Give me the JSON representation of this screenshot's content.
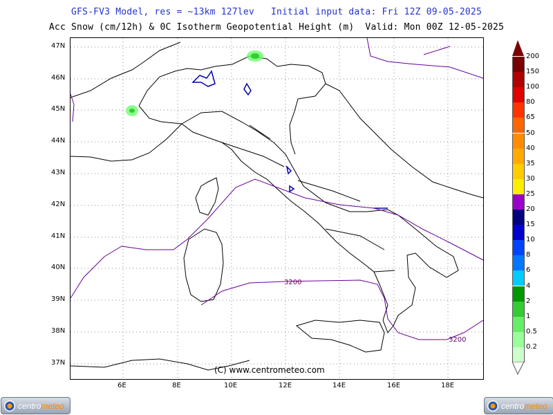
{
  "header": {
    "title_line1": "GFS-FV3 Model, res = ~13km 127lev   Initial input data: Fri 12Z 09-05-2025",
    "title_line2": "Acc Snow (cm/12h) & 0C Isotherm Geopotential Height (m)  Valid: Mon 00Z 12-05-2025"
  },
  "axes": {
    "lat_labels": [
      "47N",
      "46N",
      "45N",
      "44N",
      "43N",
      "42N",
      "41N",
      "40N",
      "39N",
      "38N",
      "37N"
    ],
    "lon_labels": [
      "6E",
      "8E",
      "10E",
      "12E",
      "14E",
      "16E",
      "18E"
    ]
  },
  "map": {
    "credit": "(C) www.centrometeo.com",
    "isotherm_labels": [
      "3200",
      "3200"
    ],
    "colors": {
      "coast": "#000000",
      "isotherm": "#660099",
      "snow_light": "#66ff66",
      "snow_med": "#33cc33"
    }
  },
  "legend": {
    "values": [
      "200",
      "150",
      "100",
      "80",
      "65",
      "50",
      "40",
      "35",
      "30",
      "25",
      "20",
      "15",
      "10",
      "8",
      "6",
      "4",
      "2",
      "1",
      "0.5",
      "0.2"
    ],
    "colors": [
      "#7a0000",
      "#b00000",
      "#e00000",
      "#ff3300",
      "#ff6600",
      "#ff8c00",
      "#ffaa00",
      "#ffcc00",
      "#ffee00",
      "#9900cc",
      "#000080",
      "#0000cc",
      "#0044ff",
      "#0077ff",
      "#00ccff",
      "#009900",
      "#33cc33",
      "#66ee66",
      "#99ff99",
      "#ccffcc"
    ]
  },
  "logos": {
    "left": "centrometeo",
    "right": "centrometeo"
  }
}
